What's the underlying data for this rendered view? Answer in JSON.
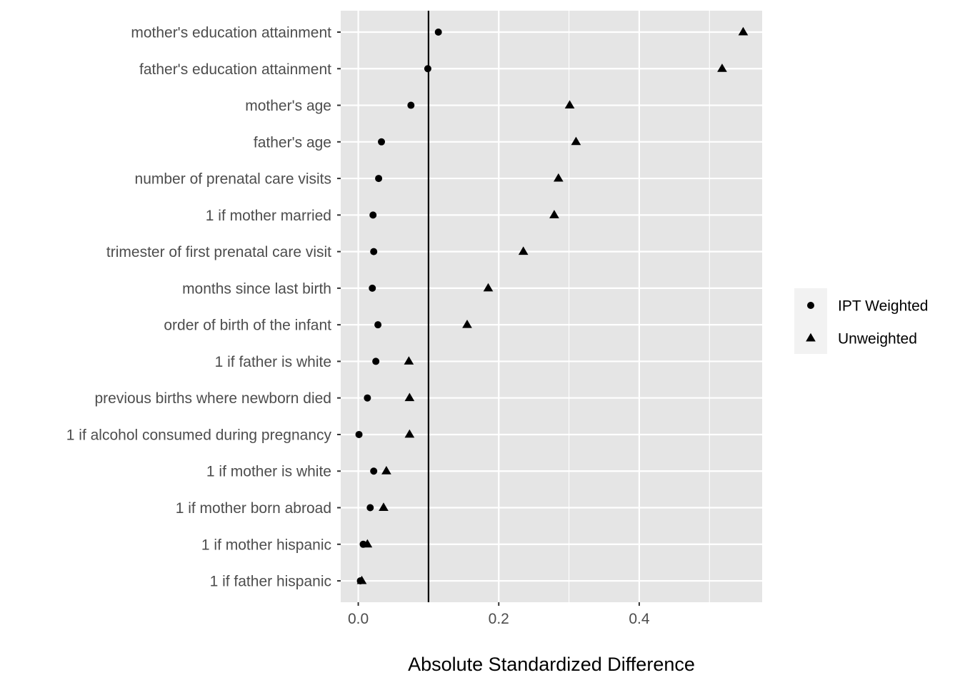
{
  "chart_data": {
    "type": "scatter",
    "xlabel": "Absolute Standardized Difference",
    "ylabel": "",
    "xlim": [
      -0.025,
      0.575
    ],
    "x_ticks": [
      0.0,
      0.2,
      0.4
    ],
    "x_tick_labels": [
      "0.0",
      "0.2",
      "0.4"
    ],
    "minor_x_ticks": [
      0.1,
      0.3,
      0.5
    ],
    "reference_line": 0.1,
    "grid": true,
    "legend_position": "right",
    "categories": [
      "mother's education attainment",
      "father's education attainment",
      "mother's age",
      "father's age",
      "number of prenatal care visits",
      "1 if mother married",
      "trimester of first prenatal care visit",
      "months since last birth",
      "order of birth of the infant",
      "1 if father is white",
      "previous births where newborn died",
      "1 if alcohol consumed during pregnancy",
      "1 if mother is white",
      "1 if mother born abroad",
      "1 if mother hispanic",
      "1 if father hispanic"
    ],
    "series": [
      {
        "name": "IPT Weighted",
        "shape": "circle",
        "values": [
          0.114,
          0.099,
          0.075,
          0.033,
          0.029,
          0.021,
          0.022,
          0.02,
          0.028,
          0.025,
          0.013,
          0.001,
          0.022,
          0.017,
          0.007,
          0.003
        ]
      },
      {
        "name": "Unweighted",
        "shape": "triangle",
        "values": [
          0.548,
          0.518,
          0.301,
          0.31,
          0.285,
          0.279,
          0.235,
          0.185,
          0.155,
          0.072,
          0.073,
          0.073,
          0.04,
          0.036,
          0.013,
          0.005
        ]
      }
    ],
    "colors": {
      "panel_bg": "#e5e5e5",
      "grid": "#ffffff",
      "points": "#000000",
      "tick_text": "#4d4d4d",
      "legend_bg": "#f2f2f2"
    }
  }
}
